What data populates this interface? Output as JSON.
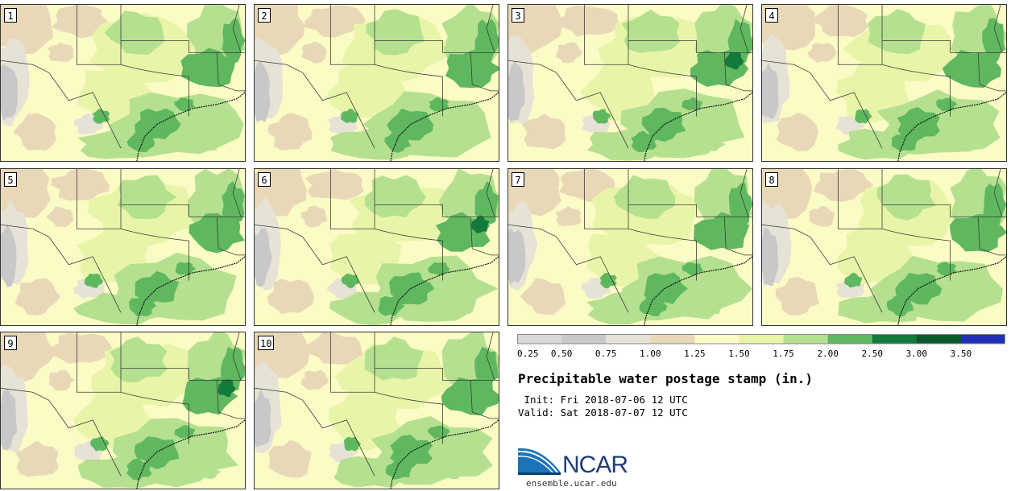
{
  "panels": [
    {
      "label": "1"
    },
    {
      "label": "2"
    },
    {
      "label": "3"
    },
    {
      "label": "4"
    },
    {
      "label": "5"
    },
    {
      "label": "6"
    },
    {
      "label": "7"
    },
    {
      "label": "8"
    },
    {
      "label": "9"
    },
    {
      "label": "10"
    }
  ],
  "colorbar": {
    "colors": [
      "#d9d9d9",
      "#c8c8c8",
      "#e6e2d6",
      "#e8d8b8",
      "#fbfbc6",
      "#e8f5a8",
      "#b5e08f",
      "#5fb860",
      "#137a3b",
      "#0c5a2c",
      "#1f2fb8"
    ],
    "tick_labels": [
      "0.25",
      "0.50",
      "0.75",
      "1.00",
      "1.25",
      "1.50",
      "1.75",
      "2.00",
      "2.50",
      "3.00",
      "3.50"
    ]
  },
  "title": "Precipitable water postage stamp (in.)",
  "init_line": " Init: Fri 2018-07-06 12 UTC",
  "valid_line": "Valid: Sat 2018-07-07 12 UTC",
  "logo": {
    "text": "NCAR",
    "url": "ensemble.ucar.edu"
  }
}
